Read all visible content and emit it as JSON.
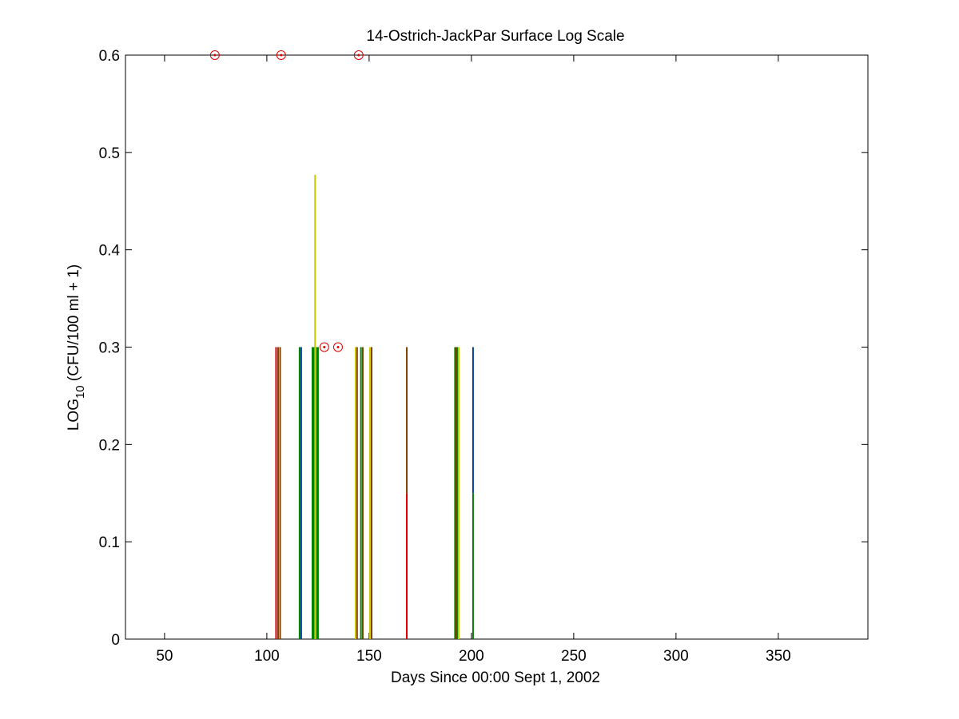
{
  "chart_data": {
    "type": "bar",
    "title": "14-Ostrich-JackPar Surface Log Scale",
    "x_label": "Days Since 00:00 Sept 1, 2002",
    "y_label": {
      "text": "LOG",
      "subscript": "10",
      "suffix": " (CFU/100 ml + 1)"
    },
    "xlim": [
      30.9,
      393.8
    ],
    "ylim": [
      0,
      0.6
    ],
    "xticks": [
      50,
      100,
      150,
      200,
      250,
      300,
      350
    ],
    "yticks": [
      0,
      0.1,
      0.2,
      0.3,
      0.4,
      0.5,
      0.6
    ],
    "series": [
      {
        "color": "#e00000",
        "x": [
          104.5,
          168.4
        ],
        "values": [
          0.3,
          0.15
        ]
      },
      {
        "color": "#008000",
        "x": [
          116,
          122.3,
          123,
          124.5,
          125,
          146,
          192,
          193,
          200.8
        ],
        "values": [
          0.3,
          0.3,
          0.3,
          0.3,
          0.3,
          0.3,
          0.3,
          0.3,
          0.15
        ]
      },
      {
        "color": "#804000",
        "x": [
          105.5,
          106.5,
          144.1,
          146.9,
          151.2,
          168.4,
          192.5
        ],
        "values": [
          0.3,
          0.3,
          0.3,
          0.3,
          0.3,
          0.15,
          0.3
        ]
      },
      {
        "color": "#0040a0",
        "x": [
          116.8,
          200.8
        ],
        "values": [
          0.3,
          0.15
        ]
      },
      {
        "color": "#c8c800",
        "x": [
          123.6,
          143.4,
          150.4,
          193.8
        ],
        "values": [
          0.477,
          0.3,
          0.3,
          0.3
        ]
      },
      {
        "type": "scatter",
        "color": "#e00000",
        "x": [
          74.6,
          107,
          144.9,
          128.1,
          134.8
        ],
        "values": [
          0.6,
          0.6,
          0.6,
          0.3,
          0.3
        ]
      }
    ]
  }
}
